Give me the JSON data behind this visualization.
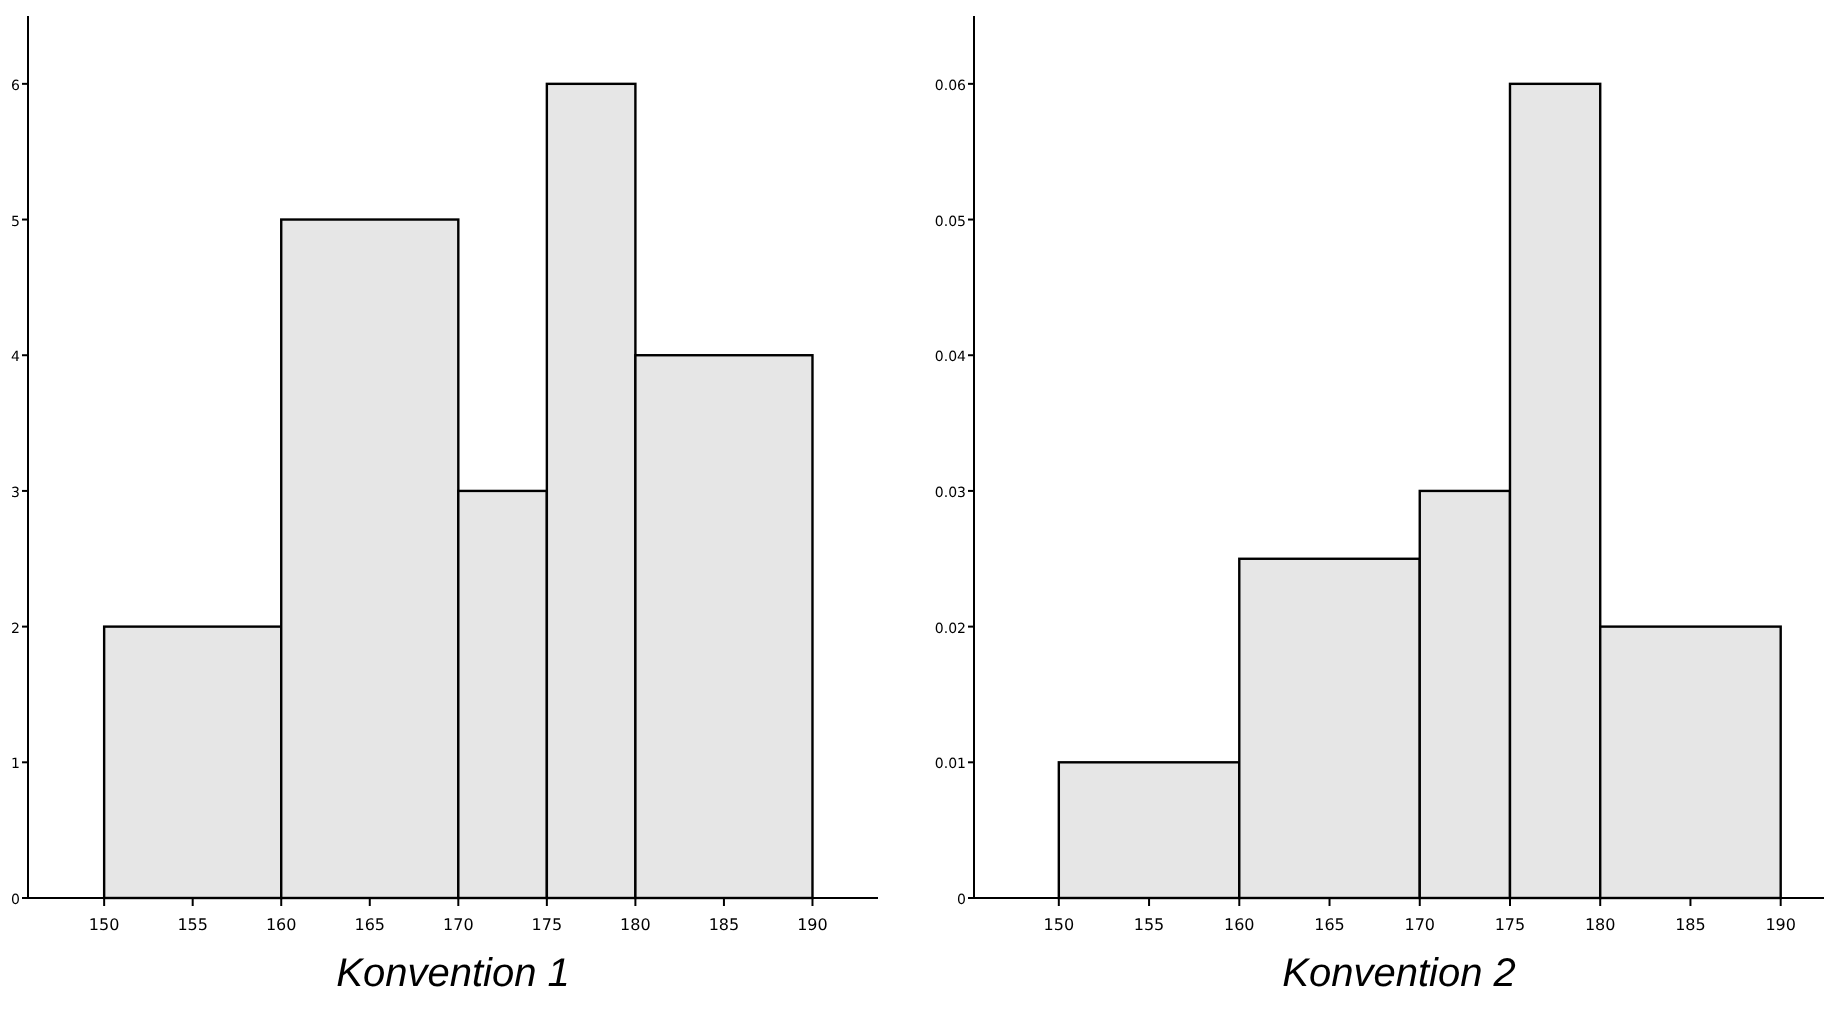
{
  "chart_data": [
    {
      "type": "histogram",
      "xlabel": "Konvention 1",
      "bins": [
        150,
        160,
        170,
        175,
        180,
        190
      ],
      "values": [
        2,
        5,
        3,
        6,
        4
      ],
      "color": "#e6e6e6",
      "xlim": [
        145.7,
        193.7
      ],
      "xticks": [
        150,
        155,
        160,
        165,
        170,
        175,
        180,
        185,
        190
      ],
      "ylim": [
        0,
        6.5
      ],
      "yticks": [
        0,
        1,
        2,
        3,
        4,
        5,
        6
      ],
      "grid": false
    },
    {
      "type": "histogram",
      "xlabel": "Konvention 2",
      "bins": [
        150,
        160,
        170,
        175,
        180,
        190
      ],
      "values": [
        0.01,
        0.025,
        0.03,
        0.06,
        0.02
      ],
      "color": "#e6e6e6",
      "xlim": [
        145.3,
        192.4
      ],
      "xticks": [
        150,
        155,
        160,
        165,
        170,
        175,
        180,
        185,
        190
      ],
      "ylim": [
        0,
        0.065
      ],
      "yticks": [
        0,
        0.01,
        0.02,
        0.03,
        0.04,
        0.05,
        0.06
      ],
      "grid": false
    }
  ]
}
